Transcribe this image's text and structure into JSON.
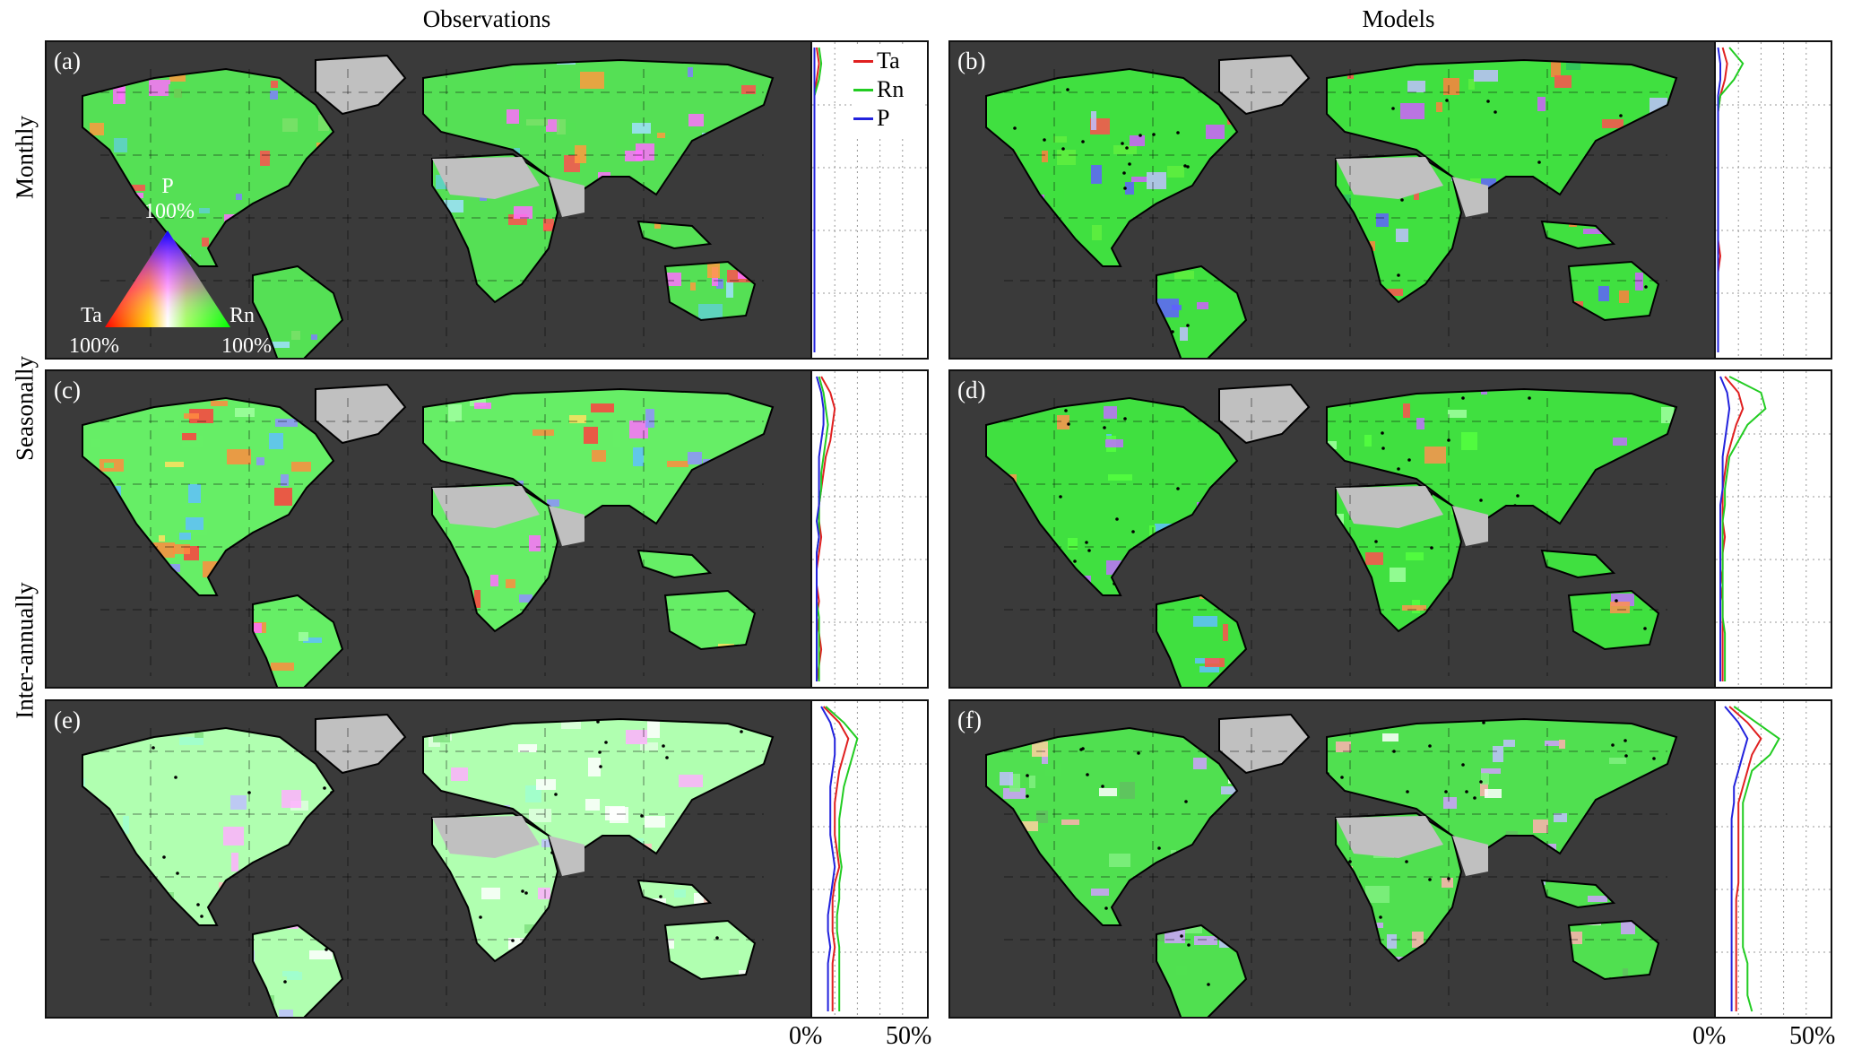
{
  "columns": {
    "left": "Observations",
    "right": "Models"
  },
  "rows": [
    "Monthly",
    "Seasonally",
    "Inter-annually"
  ],
  "panel_letters": [
    "(a)",
    "(b)",
    "(c)",
    "(d)",
    "(e)",
    "(f)"
  ],
  "legend": {
    "items": [
      {
        "label": "Ta",
        "color": "#e02020"
      },
      {
        "label": "Rn",
        "color": "#22cc22"
      },
      {
        "label": "P",
        "color": "#2222dd"
      }
    ]
  },
  "ternary": {
    "top_label": "P",
    "top_pct": "100%",
    "left_label": "Ta",
    "left_pct": "100%",
    "right_label": "Rn",
    "right_pct": "100%"
  },
  "axis": {
    "left_tick": "0%",
    "right_tick": "50%"
  },
  "colors": {
    "background": "#3a3a3a",
    "desert": "#c0c0c0",
    "ta": "#ff3030",
    "rn": "#30ff30",
    "p": "#3030ff"
  },
  "chart_data": [
    {
      "panel": "a",
      "type": "line",
      "x_axis": "percent",
      "xlim": [
        0,
        50
      ],
      "y_axis": "latitude",
      "series": [
        {
          "name": "Ta",
          "values": [
            2,
            3,
            2,
            1,
            1,
            1,
            1,
            1,
            1,
            1,
            1,
            1,
            1,
            1,
            1,
            1,
            1,
            1,
            1,
            1
          ]
        },
        {
          "name": "Rn",
          "values": [
            3,
            4,
            3,
            1,
            1,
            1,
            1,
            1,
            1,
            1,
            1,
            1,
            1,
            1,
            1,
            1,
            1,
            1,
            1,
            1
          ]
        },
        {
          "name": "P",
          "values": [
            1,
            1,
            1,
            1,
            1,
            1,
            1,
            1,
            1,
            1,
            1,
            1,
            1,
            1,
            1,
            1,
            1,
            1,
            1,
            1
          ]
        }
      ]
    },
    {
      "panel": "b",
      "type": "line",
      "x_axis": "percent",
      "xlim": [
        0,
        50
      ],
      "y_axis": "latitude",
      "series": [
        {
          "name": "Ta",
          "values": [
            3,
            5,
            4,
            2,
            1,
            1,
            1,
            1,
            1,
            1,
            1,
            1,
            1,
            2,
            1,
            1,
            1,
            1,
            1,
            1
          ]
        },
        {
          "name": "Rn",
          "values": [
            6,
            12,
            8,
            2,
            1,
            1,
            1,
            1,
            1,
            1,
            1,
            1,
            1,
            1,
            1,
            1,
            1,
            1,
            1,
            1
          ]
        },
        {
          "name": "P",
          "values": [
            1,
            2,
            2,
            1,
            1,
            1,
            1,
            1,
            1,
            1,
            1,
            1,
            1,
            1,
            1,
            1,
            1,
            1,
            1,
            1
          ]
        }
      ]
    },
    {
      "panel": "c",
      "type": "line",
      "x_axis": "percent",
      "xlim": [
        0,
        50
      ],
      "y_axis": "latitude",
      "series": [
        {
          "name": "Ta",
          "values": [
            4,
            8,
            10,
            9,
            8,
            6,
            5,
            4,
            3,
            3,
            4,
            3,
            2,
            2,
            3,
            2,
            3,
            4,
            3,
            2
          ]
        },
        {
          "name": "Rn",
          "values": [
            3,
            5,
            6,
            7,
            6,
            5,
            4,
            4,
            3,
            3,
            3,
            2,
            2,
            2,
            2,
            3,
            3,
            3,
            3,
            3
          ]
        },
        {
          "name": "P",
          "values": [
            2,
            4,
            5,
            5,
            4,
            3,
            3,
            3,
            3,
            2,
            3,
            2,
            2,
            2,
            2,
            2,
            2,
            2,
            2,
            2
          ]
        }
      ]
    },
    {
      "panel": "d",
      "type": "line",
      "x_axis": "percent",
      "xlim": [
        0,
        50
      ],
      "y_axis": "latitude",
      "series": [
        {
          "name": "Ta",
          "values": [
            4,
            10,
            12,
            9,
            7,
            5,
            4,
            3,
            3,
            3,
            4,
            3,
            3,
            2,
            3,
            3,
            3,
            3,
            3,
            3
          ]
        },
        {
          "name": "Rn",
          "values": [
            6,
            20,
            22,
            14,
            10,
            6,
            5,
            4,
            4,
            3,
            3,
            3,
            3,
            3,
            3,
            3,
            4,
            4,
            4,
            4
          ]
        },
        {
          "name": "P",
          "values": [
            2,
            5,
            6,
            5,
            4,
            3,
            3,
            3,
            2,
            2,
            2,
            2,
            2,
            2,
            2,
            2,
            2,
            2,
            2,
            2
          ]
        }
      ]
    },
    {
      "panel": "e",
      "type": "line",
      "x_axis": "percent",
      "xlim": [
        0,
        50
      ],
      "y_axis": "latitude",
      "series": [
        {
          "name": "Ta",
          "values": [
            5,
            12,
            16,
            14,
            12,
            11,
            10,
            10,
            10,
            11,
            12,
            10,
            9,
            9,
            9,
            10,
            9,
            9,
            9,
            9
          ]
        },
        {
          "name": "Rn",
          "values": [
            6,
            14,
            20,
            18,
            16,
            14,
            13,
            12,
            12,
            12,
            13,
            12,
            12,
            11,
            11,
            12,
            12,
            12,
            12,
            12
          ]
        },
        {
          "name": "P",
          "values": [
            4,
            8,
            10,
            10,
            9,
            8,
            8,
            8,
            8,
            9,
            10,
            9,
            8,
            7,
            7,
            8,
            7,
            7,
            7,
            7
          ]
        }
      ]
    },
    {
      "panel": "f",
      "type": "line",
      "x_axis": "percent",
      "xlim": [
        0,
        50
      ],
      "y_axis": "latitude",
      "series": [
        {
          "name": "Ta",
          "values": [
            6,
            14,
            20,
            16,
            14,
            12,
            10,
            10,
            10,
            10,
            10,
            10,
            9,
            9,
            9,
            9,
            9,
            9,
            9,
            9
          ]
        },
        {
          "name": "Rn",
          "values": [
            8,
            18,
            28,
            24,
            16,
            14,
            12,
            12,
            12,
            12,
            12,
            12,
            12,
            12,
            12,
            12,
            14,
            14,
            14,
            16
          ]
        },
        {
          "name": "P",
          "values": [
            4,
            10,
            14,
            12,
            10,
            8,
            8,
            7,
            7,
            7,
            7,
            7,
            7,
            7,
            7,
            7,
            7,
            7,
            7,
            7
          ]
        }
      ]
    }
  ]
}
